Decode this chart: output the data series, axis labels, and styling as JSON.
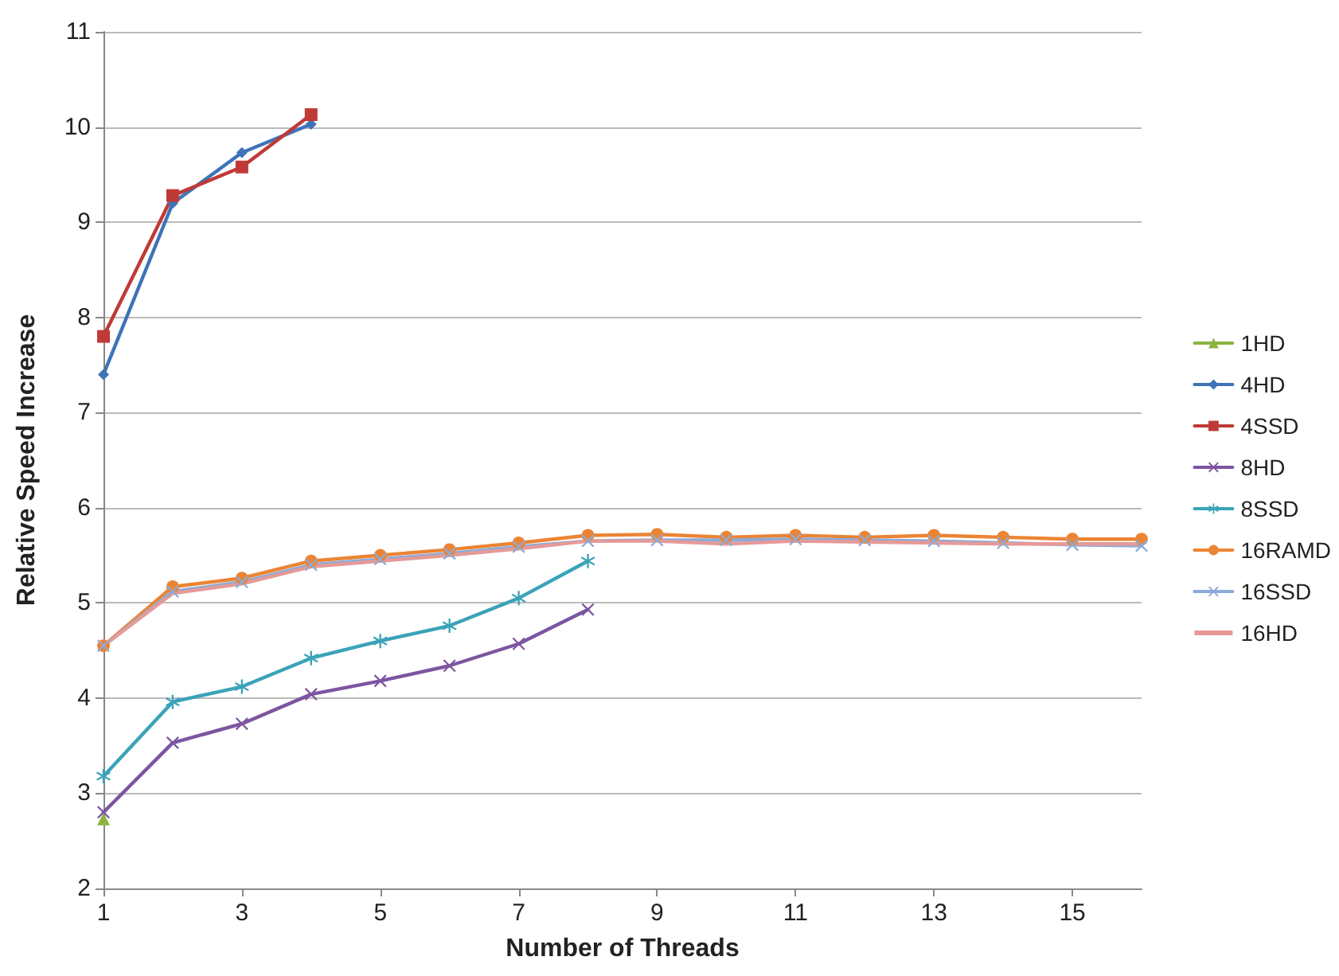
{
  "chart_data": {
    "type": "line",
    "xlabel": "Number of Threads",
    "ylabel": "Relative Speed Increase",
    "x": [
      1,
      2,
      3,
      4,
      5,
      6,
      7,
      8,
      9,
      10,
      11,
      12,
      13,
      14,
      15,
      16
    ],
    "xlim": [
      1,
      16
    ],
    "xticks": [
      1,
      3,
      5,
      7,
      9,
      11,
      13,
      15
    ],
    "ylim": [
      2,
      11
    ],
    "yticks": [
      2,
      3,
      4,
      5,
      6,
      7,
      8,
      9,
      10,
      11
    ],
    "grid": "y",
    "legend": "right",
    "series": [
      {
        "name": "1HD",
        "color": "#8cb33f",
        "marker": "triangle",
        "x": [
          1
        ],
        "values": [
          2.73
        ]
      },
      {
        "name": "4HD",
        "color": "#3f73b8",
        "marker": "diamond",
        "x": [
          1,
          2,
          3,
          4
        ],
        "values": [
          7.4,
          9.2,
          9.73,
          10.03
        ]
      },
      {
        "name": "4SSD",
        "color": "#bf3a37",
        "marker": "square",
        "x": [
          1,
          2,
          3,
          4
        ],
        "values": [
          7.8,
          9.28,
          9.58,
          10.13
        ]
      },
      {
        "name": "8HD",
        "color": "#7d55a0",
        "marker": "cross",
        "x": [
          1,
          2,
          3,
          4,
          5,
          6,
          7,
          8
        ],
        "values": [
          2.8,
          3.53,
          3.73,
          4.04,
          4.18,
          4.34,
          4.57,
          4.93
        ]
      },
      {
        "name": "8SSD",
        "color": "#3aa3b8",
        "marker": "star",
        "x": [
          1,
          2,
          3,
          4,
          5,
          6,
          7,
          8
        ],
        "values": [
          3.18,
          3.96,
          4.12,
          4.42,
          4.6,
          4.76,
          5.05,
          5.44
        ]
      },
      {
        "name": "16RAMD",
        "color": "#ec8433",
        "marker": "circle",
        "values": [
          4.55,
          5.17,
          5.26,
          5.44,
          5.5,
          5.56,
          5.63,
          5.71,
          5.72,
          5.69,
          5.71,
          5.69,
          5.71,
          5.69,
          5.67,
          5.67
        ]
      },
      {
        "name": "16SSD",
        "color": "#8cabd9",
        "marker": "cross",
        "values": [
          4.55,
          5.12,
          5.22,
          5.4,
          5.46,
          5.52,
          5.59,
          5.65,
          5.66,
          5.66,
          5.67,
          5.66,
          5.65,
          5.63,
          5.61,
          5.6
        ]
      },
      {
        "name": "16HD",
        "color": "#e59a98",
        "marker": "none",
        "values": [
          4.55,
          5.1,
          5.2,
          5.38,
          5.44,
          5.5,
          5.57,
          5.65,
          5.65,
          5.62,
          5.65,
          5.64,
          5.63,
          5.62,
          5.62,
          5.62
        ]
      }
    ]
  }
}
